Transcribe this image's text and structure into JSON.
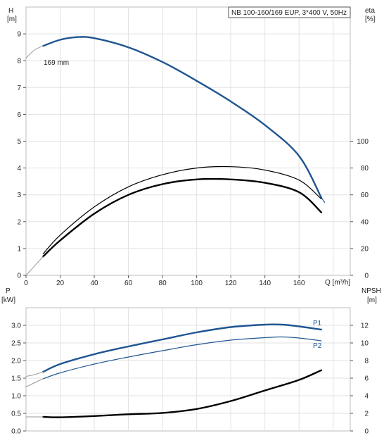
{
  "chart_data": [
    {
      "type": "line",
      "title": "NB 100-160/169 EUP, 3*400 V, 50Hz",
      "curve_label": "169 mm",
      "x_axis": {
        "label": "Q [m³/h]",
        "range": [
          0,
          190
        ],
        "ticks": [
          0,
          20,
          40,
          60,
          80,
          100,
          120,
          140,
          160
        ]
      },
      "y_left": {
        "label_line1": "H",
        "label_line2": "[m]",
        "range": [
          0,
          10
        ],
        "ticks": [
          0,
          1,
          2,
          3,
          4,
          5,
          6,
          7,
          8,
          9
        ]
      },
      "y_right": {
        "label_line1": "eta",
        "label_line2": "[%]",
        "range": [
          0,
          200
        ],
        "ticks": [
          0,
          20,
          40,
          60,
          80,
          100
        ]
      },
      "grid": true,
      "series": [
        {
          "axis": "left",
          "color": "#1f5591",
          "width": 2.4,
          "x": [
            10,
            20,
            30,
            40,
            60,
            80,
            100,
            120,
            140,
            160,
            173
          ],
          "y": [
            8.55,
            8.78,
            8.88,
            8.84,
            8.5,
            7.95,
            7.25,
            6.48,
            5.6,
            4.45,
            2.9
          ]
        },
        {
          "axis": "left",
          "color": "#999999",
          "width": 1,
          "x": [
            0,
            5,
            10
          ],
          "y": [
            8.1,
            8.4,
            8.55
          ]
        },
        {
          "axis": "left",
          "color": "#1f5591",
          "width": 1.2,
          "x": [
            173,
            175
          ],
          "y": [
            2.9,
            2.72
          ]
        },
        {
          "axis": "right",
          "color": "#000000",
          "width": 1.2,
          "x": [
            10,
            20,
            40,
            60,
            80,
            100,
            120,
            140,
            160,
            173
          ],
          "y": [
            16,
            30,
            51,
            66,
            75,
            80,
            81,
            78.5,
            71,
            57
          ]
        },
        {
          "axis": "right",
          "color": "#000000",
          "width": 2.4,
          "x": [
            10,
            20,
            40,
            60,
            80,
            100,
            120,
            140,
            160,
            173
          ],
          "y": [
            14,
            26,
            46,
            60,
            68,
            71.5,
            71.5,
            69,
            62,
            47
          ]
        },
        {
          "axis": "right",
          "color": "#999999",
          "width": 1,
          "x": [
            0,
            5,
            10
          ],
          "y": [
            0,
            7,
            14
          ]
        }
      ]
    },
    {
      "type": "line",
      "x_axis": {
        "range": [
          0,
          190
        ]
      },
      "y_left": {
        "label_line1": "P",
        "label_line2": "[kW]",
        "range": [
          0,
          3.5
        ],
        "ticks": [
          "0.0",
          "0.5",
          "1.0",
          "1.5",
          "2.0",
          "2.5",
          "3.0"
        ]
      },
      "y_right": {
        "label_line1": "NPSH",
        "label_line2": "[m]",
        "range": [
          0,
          14
        ],
        "ticks": [
          0,
          2,
          4,
          6,
          8,
          10,
          12
        ]
      },
      "grid": true,
      "series": [
        {
          "name": "P1",
          "axis": "left",
          "color": "#1f5591",
          "width": 2.4,
          "x": [
            10,
            20,
            40,
            60,
            80,
            100,
            120,
            140,
            150,
            160,
            173
          ],
          "y": [
            1.68,
            1.9,
            2.18,
            2.4,
            2.6,
            2.8,
            2.95,
            3.02,
            3.02,
            2.97,
            2.88
          ]
        },
        {
          "name": "P2",
          "axis": "left",
          "color": "#1f5591",
          "width": 1.2,
          "x": [
            10,
            20,
            40,
            60,
            80,
            100,
            120,
            140,
            150,
            160,
            173
          ],
          "y": [
            1.48,
            1.65,
            1.9,
            2.1,
            2.28,
            2.45,
            2.58,
            2.65,
            2.67,
            2.64,
            2.56
          ]
        },
        {
          "axis": "left",
          "color": "#999999",
          "width": 1,
          "x": [
            0,
            5,
            10
          ],
          "y": [
            1.55,
            1.6,
            1.68
          ]
        },
        {
          "axis": "left",
          "color": "#999999",
          "width": 1,
          "x": [
            0,
            5,
            10
          ],
          "y": [
            1.25,
            1.37,
            1.48
          ]
        },
        {
          "axis": "right",
          "color": "#000000",
          "width": 2.4,
          "x": [
            10,
            20,
            40,
            60,
            80,
            100,
            120,
            140,
            160,
            173
          ],
          "y": [
            1.6,
            1.55,
            1.7,
            1.9,
            2.05,
            2.5,
            3.4,
            4.6,
            5.8,
            6.9
          ]
        },
        {
          "axis": "right",
          "color": "#999999",
          "width": 1,
          "x": [
            0,
            5,
            10
          ],
          "y": [
            1.6,
            1.6,
            1.6
          ]
        }
      ]
    }
  ]
}
